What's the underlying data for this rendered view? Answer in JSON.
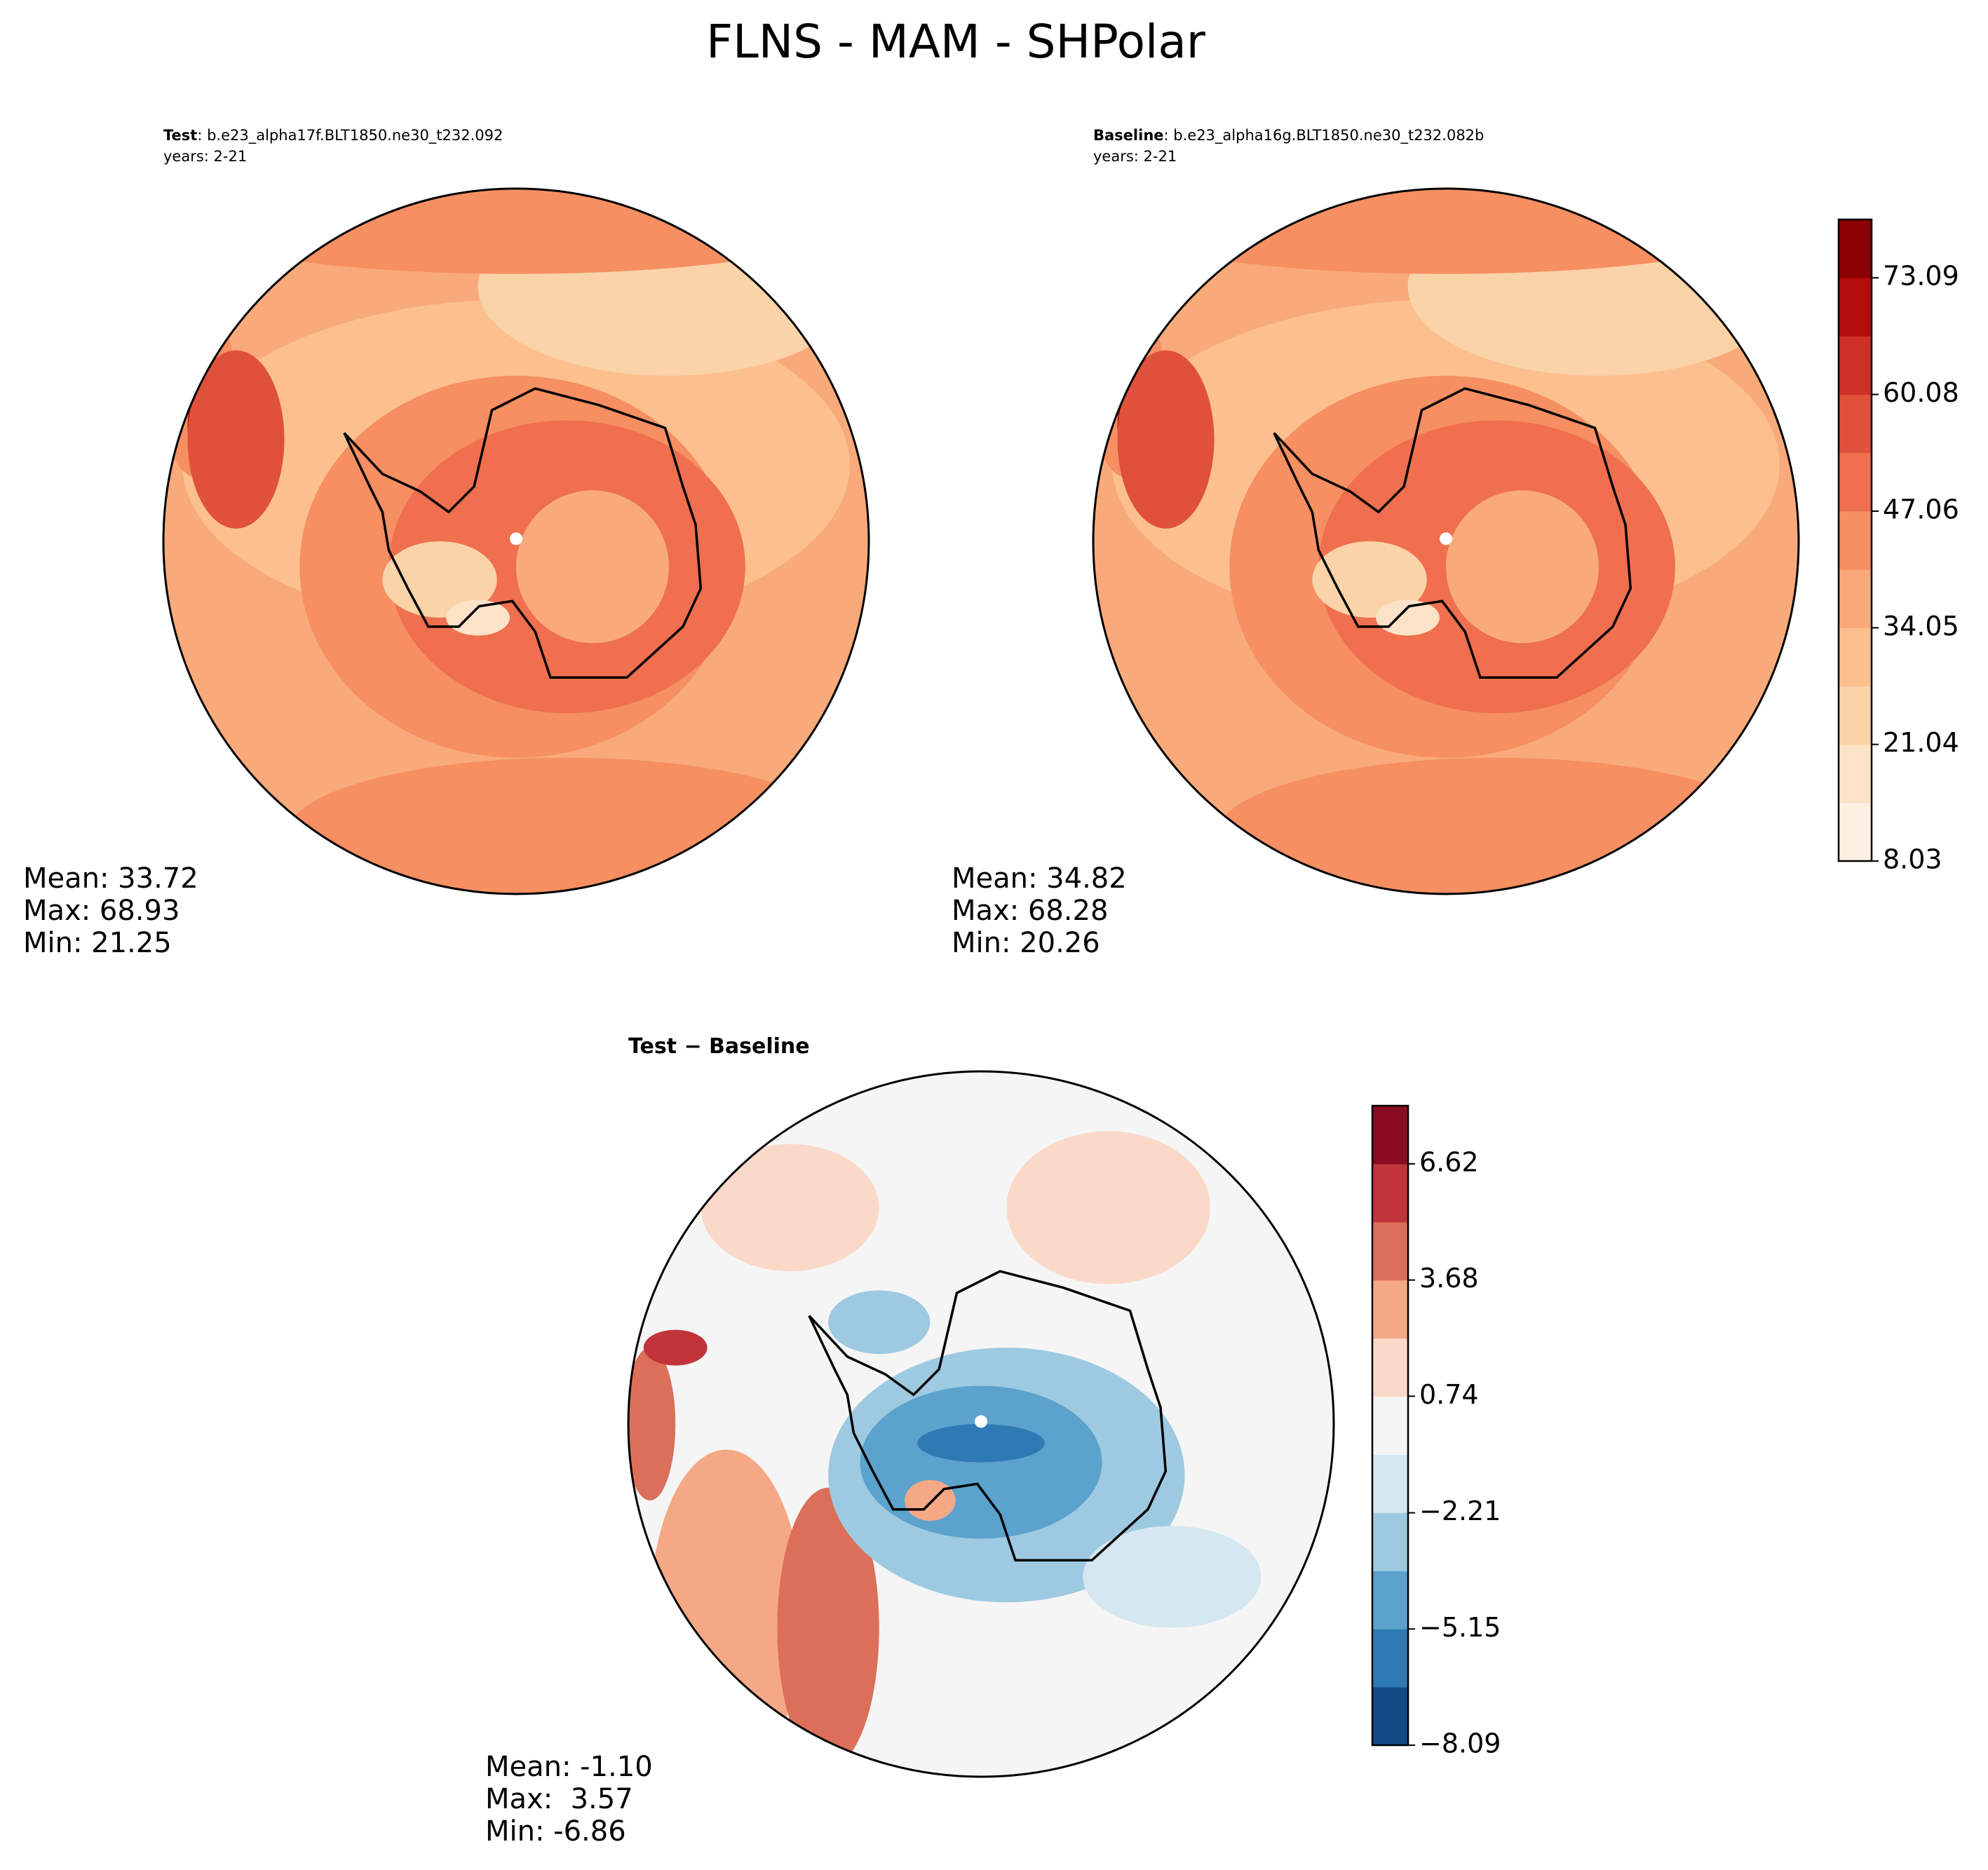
{
  "chart_data": [
    {
      "type": "polar-map",
      "title": "FLNS - MAM - SHPolar",
      "label": "Test",
      "case": ": b.e23_alpha17f.BLT1850.ne30_t232.092",
      "years": "years: 2-21",
      "stats": [
        "Mean: 33.72",
        "Max: 68.93",
        "Min: 21.25"
      ],
      "colors": [
        "#fdf0e2",
        "#fce3c8",
        "#fbd3a8",
        "#fbc08e",
        "#f9aa7a",
        "#f68f62",
        "#ef6f4e",
        "#e0513c",
        "#cd3024",
        "#b30d0d",
        "#8b0000"
      ]
    },
    {
      "type": "polar-map",
      "label": "Baseline",
      "case": ": b.e23_alpha16g.BLT1850.ne30_t232.082b",
      "years": "years: 2-21",
      "stats": [
        "Mean: 34.82",
        "Max: 68.28",
        "Min: 20.26"
      ],
      "colors": [
        "#fdf0e2",
        "#fce3c8",
        "#fbd3a8",
        "#fbc08e",
        "#f9aa7a",
        "#f68f62",
        "#ef6f4e",
        "#e0513c",
        "#cd3024",
        "#b30d0d",
        "#8b0000"
      ],
      "colorbar": {
        "ylim": [
          8.03,
          79.6
        ],
        "yticks": [
          8.03,
          21.04,
          34.05,
          47.06,
          60.08,
          73.09
        ]
      }
    },
    {
      "type": "polar-diff",
      "label": "Test − Baseline",
      "stats": [
        "Mean: -1.10",
        "Max:  3.57",
        "Min: -6.86"
      ],
      "colors": [
        "#134b87",
        "#2f79b5",
        "#5ba2cc",
        "#9dcae1",
        "#d5e7f1",
        "#f5f5f5",
        "#fbd9c8",
        "#f5a886",
        "#dc6f59",
        "#c1353a",
        "#8a0c24"
      ],
      "colorbar": {
        "ylim": [
          -8.09,
          8.09
        ],
        "yticks": [
          {
            "value": -8.09,
            "label": "−8.09"
          },
          {
            "value": -5.15,
            "label": "−5.15"
          },
          {
            "value": -2.21,
            "label": "−2.21"
          },
          0.74,
          3.68,
          6.62
        ]
      }
    }
  ]
}
